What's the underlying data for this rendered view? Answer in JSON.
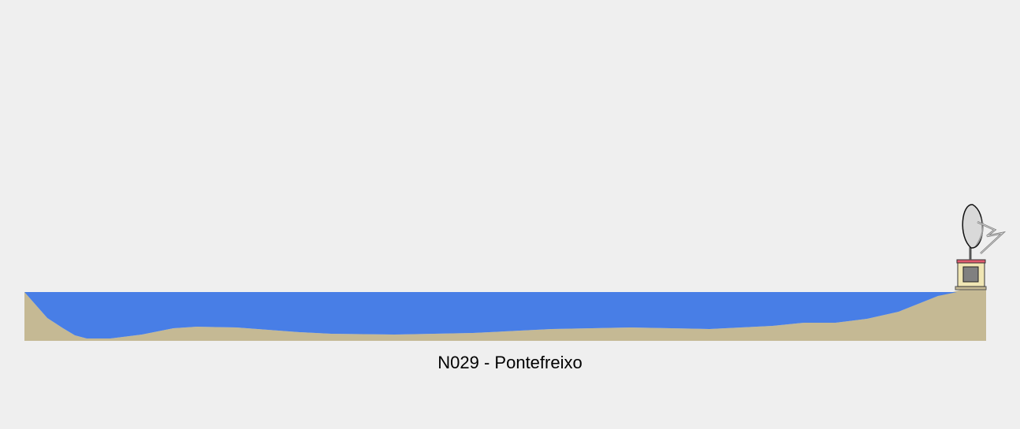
{
  "station": {
    "label": "N029 - Pontefreixo"
  },
  "colors": {
    "background": "#efefef",
    "water": "#487ee6",
    "ground": "#c5b994",
    "dish": "#d9d9d9",
    "tower_top": "#e05a6e",
    "tower_body": "#f0e6b4",
    "tower_window": "#808080"
  },
  "icons": {
    "sensor": "satellite-dish-icon",
    "station": "gauge-station-icon"
  }
}
